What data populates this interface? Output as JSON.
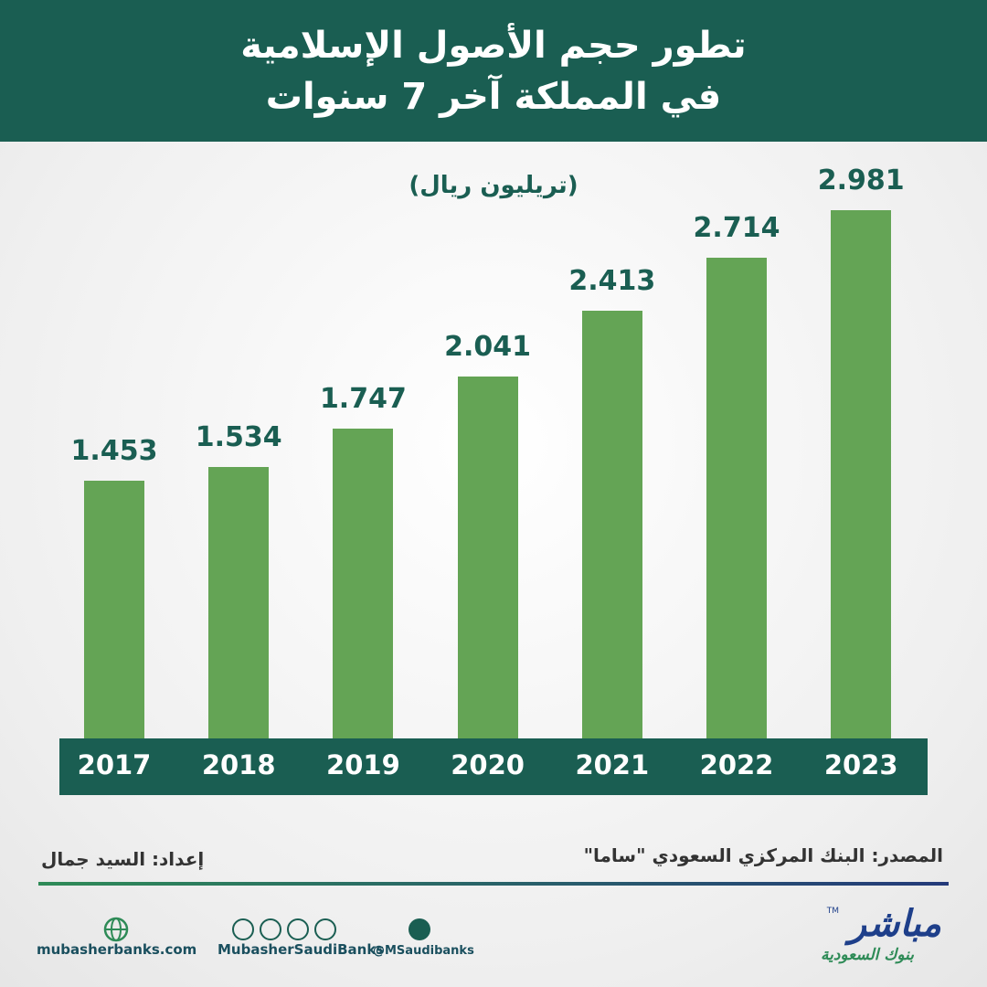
{
  "chart_data": {
    "type": "bar",
    "title": "تطور حجم الأصول الإسلامية في المملكة آخر 7 سنوات",
    "subtitle": "(تريليون ريال)",
    "categories": [
      "2017",
      "2018",
      "2019",
      "2020",
      "2021",
      "2022",
      "2023"
    ],
    "values": [
      1.453,
      1.534,
      1.747,
      2.041,
      2.413,
      2.714,
      2.981
    ],
    "color": "#64a455"
  },
  "source": "المصدر: البنك المركزي السعودي \"ساما\"",
  "credit": "إعداد: السيد جمال",
  "footer": {
    "website": "mubasherbanks.com",
    "social": "MubasherSaudiBanks",
    "twitter": "@MSaudibanks",
    "logo": "مباشر",
    "logo_subtitle": "بنوك السعودية",
    "trademark": "TM"
  }
}
